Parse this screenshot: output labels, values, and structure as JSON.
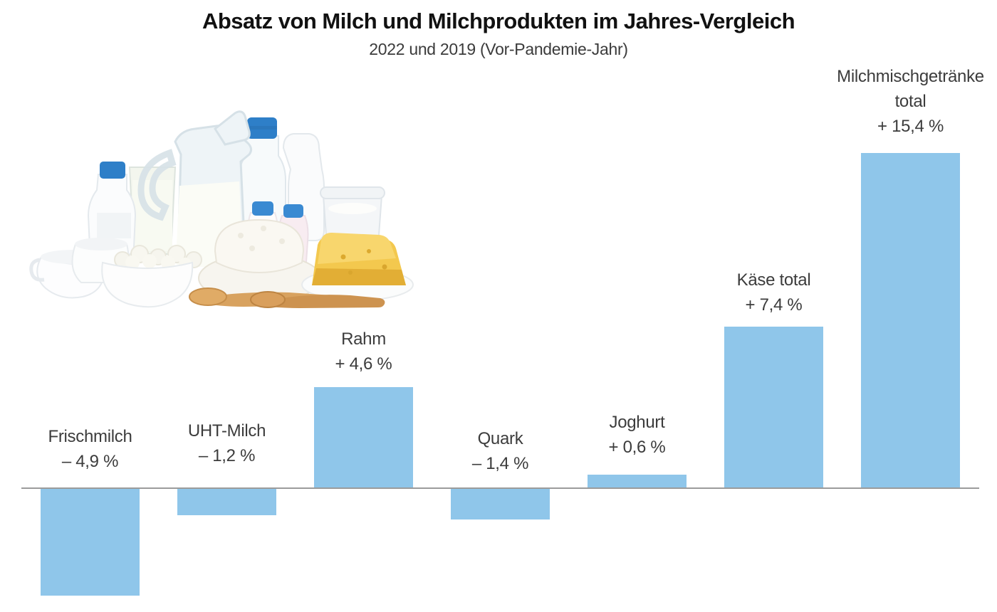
{
  "page": {
    "title": "Absatz von Milch und Milchprodukten im Jahres-Vergleich",
    "subtitle": "2022 und 2019 (Vor-Pandemie-Jahr)"
  },
  "hero_image": {
    "alt": "Milch und Milchprodukte"
  },
  "chart_data": {
    "type": "bar",
    "title": "Absatz von Milch und Milchprodukten im Jahres-Vergleich",
    "subtitle": "2022 und 2019 (Vor-Pandemie-Jahr)",
    "unit": "% Veränderung",
    "categories": [
      "Frischmilch",
      "UHT-Milch",
      "Rahm",
      "Quark",
      "Joghurt",
      "Käse total",
      "Milchmischgetränke total"
    ],
    "values": [
      -4.9,
      -1.2,
      4.6,
      -1.4,
      0.6,
      7.4,
      15.4
    ],
    "items": [
      {
        "label_lines": [
          "Frischmilch"
        ],
        "value": -4.9,
        "value_label": "– 4,9 %"
      },
      {
        "label_lines": [
          "UHT-Milch"
        ],
        "value": -1.2,
        "value_label": "– 1,2 %"
      },
      {
        "label_lines": [
          "Rahm"
        ],
        "value": 4.6,
        "value_label": "+ 4,6 %"
      },
      {
        "label_lines": [
          "Quark"
        ],
        "value": -1.4,
        "value_label": "– 1,4 %"
      },
      {
        "label_lines": [
          "Joghurt"
        ],
        "value": 0.6,
        "value_label": "+ 0,6 %"
      },
      {
        "label_lines": [
          "Käse total"
        ],
        "value": 7.4,
        "value_label": "+ 7,4 %"
      },
      {
        "label_lines": [
          "Milchmischgetränke",
          "total"
        ],
        "value": 15.4,
        "value_label": "+ 15,4 %"
      }
    ],
    "bar_color": "#8fc6ea",
    "baseline_color": "#9b9b9b",
    "text_color": "#3c3c3c",
    "legend": "none",
    "grid": false,
    "ylim": [
      -6,
      16
    ]
  }
}
